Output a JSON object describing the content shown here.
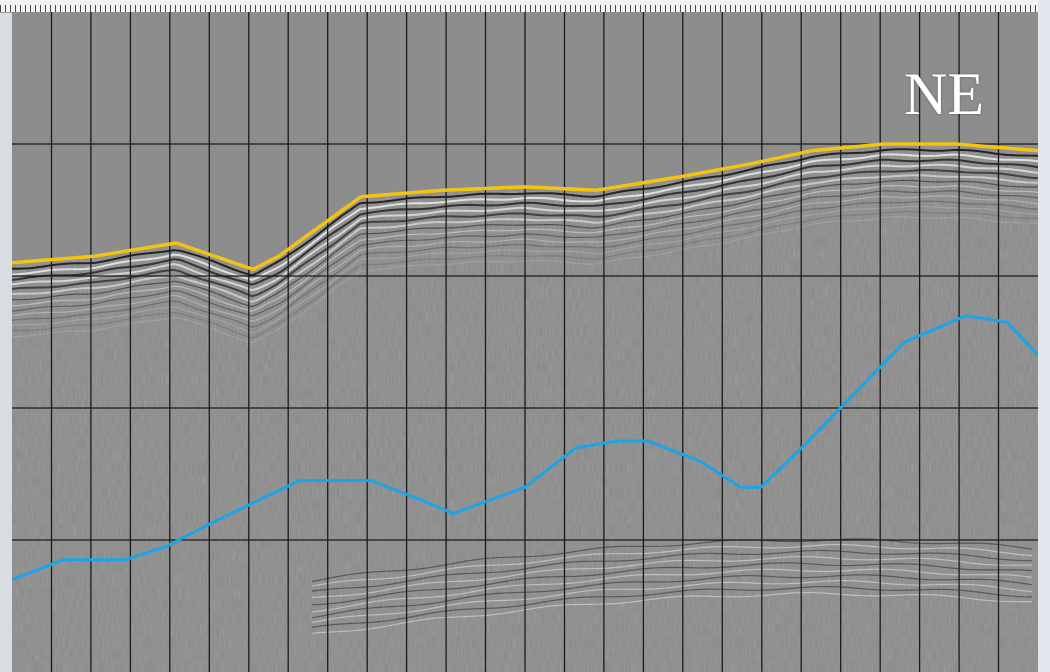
{
  "direction_label": "NE",
  "colors": {
    "water_column": "#8d8d8d",
    "section_background": "#8a8a8a",
    "seafloor_horizon": "#f2c411",
    "interpreted_horizon": "#1aa5e6",
    "grid_lines": "#1a1a1a",
    "label_text": "#ffffff"
  },
  "grid": {
    "vertical_divisions": 26,
    "horizontal_divisions": 5
  },
  "horizons": {
    "seafloor": [
      [
        0,
        0.38
      ],
      [
        0.08,
        0.37
      ],
      [
        0.16,
        0.35
      ],
      [
        0.235,
        0.39
      ],
      [
        0.26,
        0.37
      ],
      [
        0.34,
        0.28
      ],
      [
        0.42,
        0.27
      ],
      [
        0.5,
        0.265
      ],
      [
        0.57,
        0.27
      ],
      [
        0.65,
        0.25
      ],
      [
        0.72,
        0.23
      ],
      [
        0.78,
        0.21
      ],
      [
        0.85,
        0.2
      ],
      [
        0.92,
        0.2
      ],
      [
        1.0,
        0.21
      ]
    ],
    "interpreted": [
      [
        0,
        0.86
      ],
      [
        0.05,
        0.83
      ],
      [
        0.11,
        0.83
      ],
      [
        0.15,
        0.81
      ],
      [
        0.2,
        0.77
      ],
      [
        0.28,
        0.71
      ],
      [
        0.35,
        0.71
      ],
      [
        0.4,
        0.74
      ],
      [
        0.43,
        0.76
      ],
      [
        0.5,
        0.72
      ],
      [
        0.55,
        0.66
      ],
      [
        0.59,
        0.65
      ],
      [
        0.62,
        0.65
      ],
      [
        0.67,
        0.68
      ],
      [
        0.71,
        0.72
      ],
      [
        0.73,
        0.72
      ],
      [
        0.77,
        0.66
      ],
      [
        0.82,
        0.58
      ],
      [
        0.87,
        0.5
      ],
      [
        0.93,
        0.46
      ],
      [
        0.97,
        0.47
      ],
      [
        1.0,
        0.52
      ]
    ]
  }
}
